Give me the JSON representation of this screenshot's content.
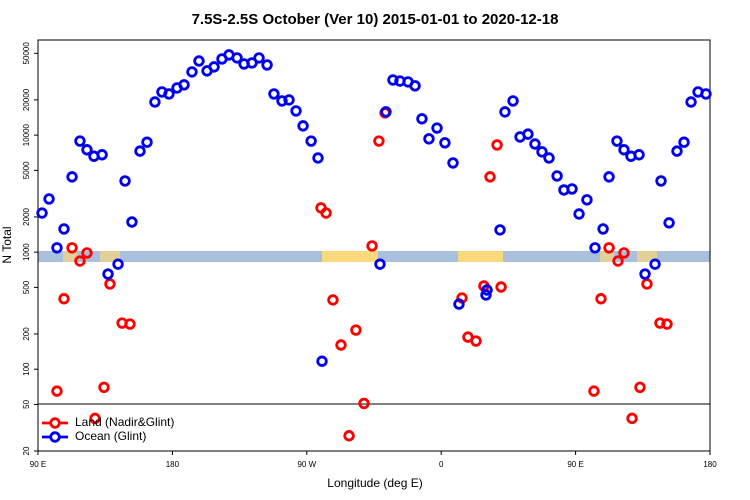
{
  "chart_data": {
    "type": "scatter",
    "title": "7.5S-2.5S October (Ver 10)   2015-01-01 to 2020-12-18",
    "x_label": "Longitude (deg E)",
    "y_label": "N Total",
    "log_y": true,
    "xlim": [
      90,
      540
    ],
    "xticks": [
      {
        "value": 90,
        "label": "90 E"
      },
      {
        "value": 180,
        "label": "180"
      },
      {
        "value": 270,
        "label": "90 W"
      },
      {
        "value": 360,
        "label": "0"
      },
      {
        "value": 450,
        "label": "90 E"
      },
      {
        "value": 540,
        "label": "180"
      }
    ],
    "ylim": [
      20,
      65000
    ],
    "yticks": [
      20,
      50,
      100,
      200,
      500,
      1000,
      2000,
      5000,
      10000,
      20000,
      50000
    ],
    "legend": "bottom-left",
    "series": [
      {
        "name": "Land (Nadir&Glint)",
        "color": "#ff0000",
        "x": [
          102.7,
          107.4,
          112.8,
          118.1,
          122.8,
          128.2,
          134.2,
          138.2,
          146.3,
          151.6,
          279.5,
          282.9,
          287.5,
          292.9,
          302.9,
          308.3,
          298.3,
          313.7,
          318.3,
          322.4,
          373.9,
          377.9,
          383.3,
          388.6,
          392.7,
          397.4,
          400.1,
          462.3,
          467.0,
          472.4,
          478.4,
          482.4,
          487.8,
          493.1,
          497.8,
          506.5,
          511.2
        ],
        "values": [
          65,
          400,
          1090,
          840,
          985,
          38,
          70,
          535,
          248,
          243,
          2390,
          2160,
          391,
          161,
          216,
          51,
          27,
          1130,
          8900,
          15500,
          406,
          188,
          174,
          514,
          4400,
          8250,
          504,
          65,
          400,
          1090,
          840,
          985,
          38,
          70,
          535,
          248,
          243
        ]
      },
      {
        "name": "Ocean (Glint)",
        "color": "#0000ee",
        "x": [
          92.7,
          97.4,
          102.7,
          107.4,
          112.8,
          118.1,
          122.8,
          127.5,
          132.9,
          136.9,
          143.6,
          148.3,
          152.9,
          158.3,
          163.0,
          168.3,
          173.0,
          177.7,
          183.1,
          187.8,
          193.1,
          197.8,
          203.2,
          207.9,
          213.2,
          217.9,
          223.3,
          228.0,
          233.3,
          238.0,
          243.4,
          248.0,
          253.4,
          258.1,
          262.8,
          267.5,
          272.9,
          277.5,
          280.2,
          319.0,
          323.0,
          327.7,
          332.4,
          337.8,
          342.5,
          347.1,
          351.8,
          357.2,
          362.5,
          367.9,
          371.9,
          390.0,
          390.7,
          399.4,
          402.7,
          408.1,
          412.8,
          418.1,
          422.8,
          427.5,
          432.2,
          437.6,
          442.2,
          447.6,
          452.3,
          457.6,
          463.0,
          468.4,
          472.4,
          477.7,
          482.4,
          487.1,
          492.5,
          496.5,
          503.2,
          507.2,
          512.6,
          517.9,
          522.6,
          527.3,
          532.0,
          537.3
        ],
        "values": [
          2160,
          2850,
          1090,
          1580,
          4400,
          8900,
          7500,
          6600,
          6800,
          650,
          790,
          4060,
          1810,
          7300,
          8700,
          19200,
          23400,
          22500,
          25300,
          26900,
          34700,
          43000,
          35400,
          38300,
          44800,
          48500,
          45700,
          40600,
          41400,
          45700,
          39800,
          22500,
          19600,
          20000,
          16100,
          12000,
          8900,
          6380,
          117,
          790,
          15800,
          29600,
          29000,
          28500,
          26400,
          13800,
          9300,
          11500,
          8600,
          5790,
          360,
          431,
          475,
          1550,
          15800,
          19600,
          9650,
          10200,
          8400,
          7200,
          6380,
          4480,
          3400,
          3470,
          2120,
          2800,
          1090,
          1580,
          4400,
          8900,
          7500,
          6600,
          6800,
          650,
          790,
          4060,
          1780,
          7300,
          8700,
          19200,
          23400,
          22500
        ]
      }
    ]
  }
}
